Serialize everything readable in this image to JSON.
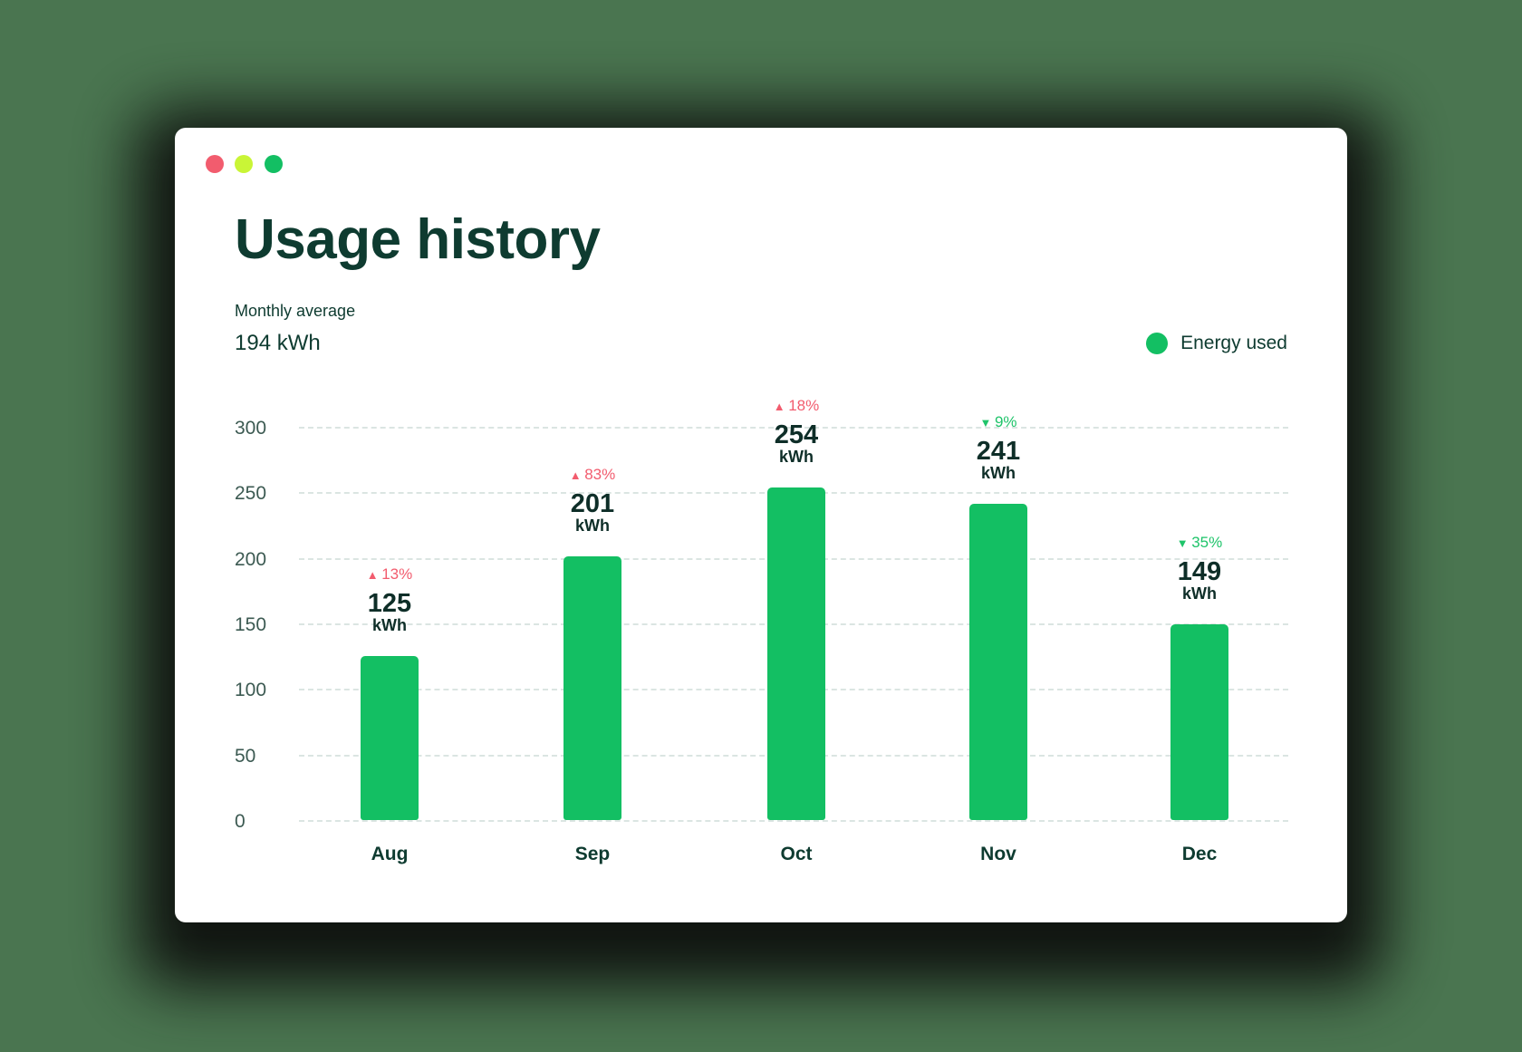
{
  "window": {
    "controls": [
      {
        "name": "close",
        "color": "#f25c6e"
      },
      {
        "name": "minimize",
        "color": "#c9f536"
      },
      {
        "name": "maximize",
        "color": "#13bf63"
      }
    ]
  },
  "header": {
    "title": "Usage history",
    "average_label": "Monthly average",
    "average_value": "194 kWh"
  },
  "legend": {
    "label": "Energy used",
    "color": "#13bf63"
  },
  "colors": {
    "bar": "#13bf63",
    "increase": "#f25c6e",
    "decrease": "#1fc46a"
  },
  "chart_data": {
    "type": "bar",
    "title": "Usage history",
    "subtitle": "Monthly average 194 kWh",
    "xlabel": "",
    "ylabel": "kWh",
    "ylim": [
      0,
      300
    ],
    "yticks": [
      0,
      50,
      100,
      150,
      200,
      250,
      300
    ],
    "grid": true,
    "legend_position": "top-right",
    "categories": [
      "Aug",
      "Sep",
      "Oct",
      "Nov",
      "Dec"
    ],
    "series": [
      {
        "name": "Energy used",
        "values": [
          125,
          201,
          254,
          241,
          149
        ]
      }
    ],
    "annotations": [
      {
        "month": "Aug",
        "value_label": "125",
        "unit": "kWh",
        "change": "13%",
        "direction": "up"
      },
      {
        "month": "Sep",
        "value_label": "201",
        "unit": "kWh",
        "change": "83%",
        "direction": "up"
      },
      {
        "month": "Oct",
        "value_label": "254",
        "unit": "kWh",
        "change": "18%",
        "direction": "up"
      },
      {
        "month": "Nov",
        "value_label": "241",
        "unit": "kWh",
        "change": "9%",
        "direction": "down"
      },
      {
        "month": "Dec",
        "value_label": "149",
        "unit": "kWh",
        "change": "35%",
        "direction": "down"
      }
    ]
  }
}
